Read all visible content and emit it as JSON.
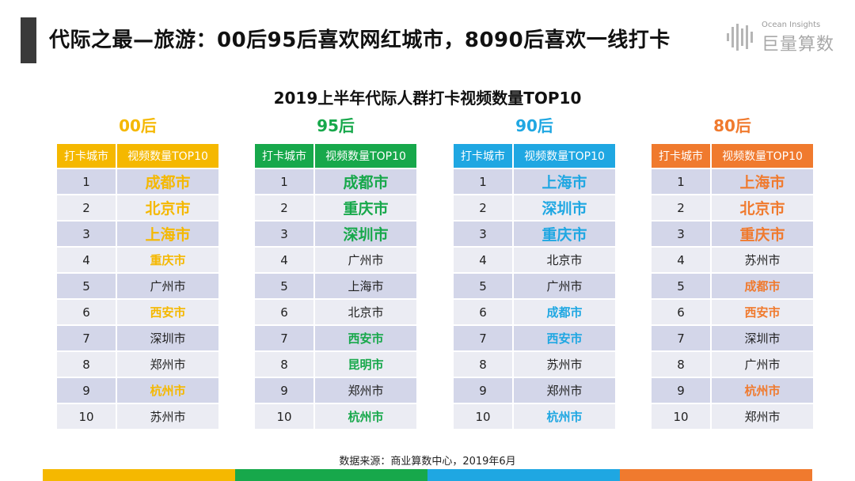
{
  "header": {
    "title": "代际之最—旅游：00后95后喜欢网红城市，8090后喜欢一线打卡"
  },
  "logo": {
    "sub": "Ocean Insights",
    "main": "巨量算数"
  },
  "subtitle": "2019上半年代际人群打卡视频数量TOP10",
  "columns": {
    "rank": "打卡城市",
    "city": "视频数量TOP10"
  },
  "colors": {
    "yellow": "#f5b800",
    "green": "#17a84b",
    "blue": "#1fa7e2",
    "orange": "#f07a2e"
  },
  "groups": [
    {
      "title": "00后",
      "color": "#f5b800",
      "rows": [
        {
          "rank": "1",
          "city": "成都市",
          "hl": "big"
        },
        {
          "rank": "2",
          "city": "北京市",
          "hl": "big"
        },
        {
          "rank": "3",
          "city": "上海市",
          "hl": "big"
        },
        {
          "rank": "4",
          "city": "重庆市",
          "hl": "small"
        },
        {
          "rank": "5",
          "city": "广州市",
          "hl": "none"
        },
        {
          "rank": "6",
          "city": "西安市",
          "hl": "small"
        },
        {
          "rank": "7",
          "city": "深圳市",
          "hl": "none"
        },
        {
          "rank": "8",
          "city": "郑州市",
          "hl": "none"
        },
        {
          "rank": "9",
          "city": "杭州市",
          "hl": "small"
        },
        {
          "rank": "10",
          "city": "苏州市",
          "hl": "none"
        }
      ]
    },
    {
      "title": "95后",
      "color": "#17a84b",
      "rows": [
        {
          "rank": "1",
          "city": "成都市",
          "hl": "big"
        },
        {
          "rank": "2",
          "city": "重庆市",
          "hl": "big"
        },
        {
          "rank": "3",
          "city": "深圳市",
          "hl": "big"
        },
        {
          "rank": "4",
          "city": "广州市",
          "hl": "none"
        },
        {
          "rank": "5",
          "city": "上海市",
          "hl": "none"
        },
        {
          "rank": "6",
          "city": "北京市",
          "hl": "none"
        },
        {
          "rank": "7",
          "city": "西安市",
          "hl": "small"
        },
        {
          "rank": "8",
          "city": "昆明市",
          "hl": "small"
        },
        {
          "rank": "9",
          "city": "郑州市",
          "hl": "none"
        },
        {
          "rank": "10",
          "city": "杭州市",
          "hl": "small"
        }
      ]
    },
    {
      "title": "90后",
      "color": "#1fa7e2",
      "rows": [
        {
          "rank": "1",
          "city": "上海市",
          "hl": "big"
        },
        {
          "rank": "2",
          "city": "深圳市",
          "hl": "big"
        },
        {
          "rank": "3",
          "city": "重庆市",
          "hl": "big"
        },
        {
          "rank": "4",
          "city": "北京市",
          "hl": "none"
        },
        {
          "rank": "5",
          "city": "广州市",
          "hl": "none"
        },
        {
          "rank": "6",
          "city": "成都市",
          "hl": "small"
        },
        {
          "rank": "7",
          "city": "西安市",
          "hl": "small"
        },
        {
          "rank": "8",
          "city": "苏州市",
          "hl": "none"
        },
        {
          "rank": "9",
          "city": "郑州市",
          "hl": "none"
        },
        {
          "rank": "10",
          "city": "杭州市",
          "hl": "small"
        }
      ]
    },
    {
      "title": "80后",
      "color": "#f07a2e",
      "rows": [
        {
          "rank": "1",
          "city": "上海市",
          "hl": "big"
        },
        {
          "rank": "2",
          "city": "北京市",
          "hl": "big"
        },
        {
          "rank": "3",
          "city": "重庆市",
          "hl": "big"
        },
        {
          "rank": "4",
          "city": "苏州市",
          "hl": "none"
        },
        {
          "rank": "5",
          "city": "成都市",
          "hl": "small"
        },
        {
          "rank": "6",
          "city": "西安市",
          "hl": "small"
        },
        {
          "rank": "7",
          "city": "深圳市",
          "hl": "none"
        },
        {
          "rank": "8",
          "city": "广州市",
          "hl": "none"
        },
        {
          "rank": "9",
          "city": "杭州市",
          "hl": "small"
        },
        {
          "rank": "10",
          "city": "郑州市",
          "hl": "none"
        }
      ]
    }
  ],
  "source": "数据来源：商业算数中心，2019年6月"
}
